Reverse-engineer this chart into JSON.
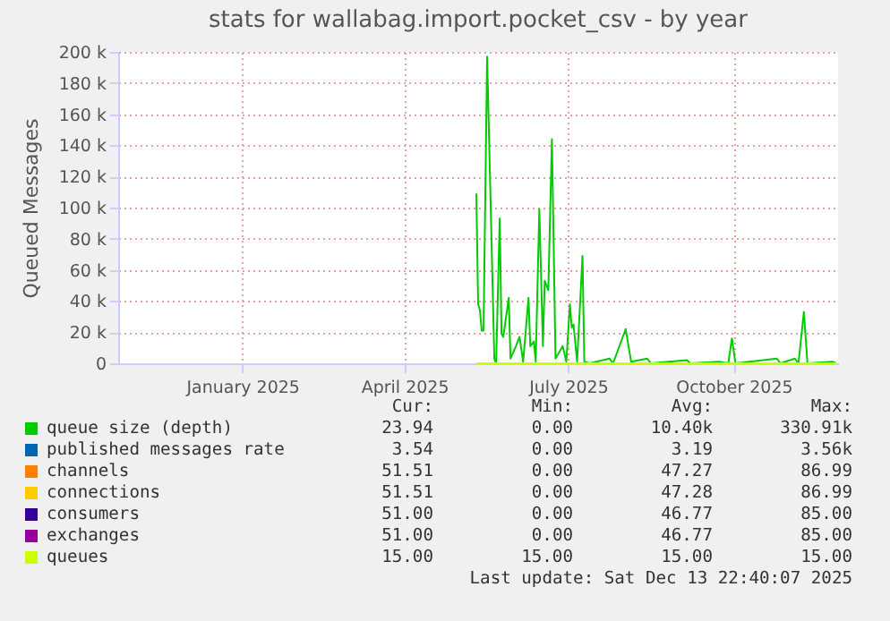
{
  "chart_data": {
    "type": "line",
    "title": "stats for wallabag.import.pocket_csv - by year",
    "ylabel": "Queued Messages",
    "xlim": [
      "2024-11-08",
      "2025-12-13"
    ],
    "xticks": [
      {
        "value": "2025-01-16",
        "label": "January 2025"
      },
      {
        "value": "2025-04-16",
        "label": "April 2025"
      },
      {
        "value": "2025-07-16",
        "label": "July 2025"
      },
      {
        "value": "2025-10-16",
        "label": "October 2025"
      }
    ],
    "ylim": [
      0,
      200000
    ],
    "yticks": [
      {
        "value": 0,
        "label": "0"
      },
      {
        "value": 20000,
        "label": "20 k"
      },
      {
        "value": 40000,
        "label": "40 k"
      },
      {
        "value": 60000,
        "label": "60 k"
      },
      {
        "value": 80000,
        "label": "80 k"
      },
      {
        "value": 100000,
        "label": "100 k"
      },
      {
        "value": 120000,
        "label": "120 k"
      },
      {
        "value": 140000,
        "label": "140 k"
      },
      {
        "value": 160000,
        "label": "160 k"
      },
      {
        "value": 180000,
        "label": "180 k"
      },
      {
        "value": 200000,
        "label": "200 k"
      }
    ],
    "grid": true,
    "legend": "bottom",
    "series": [
      {
        "name": "queue size (depth)",
        "color": "#00cc00",
        "x": [
          "2025-05-26",
          "2025-05-27",
          "2025-05-28",
          "2025-05-29",
          "2025-05-30",
          "2025-06-01",
          "2025-06-05",
          "2025-06-06",
          "2025-06-08",
          "2025-06-09",
          "2025-06-10",
          "2025-06-13",
          "2025-06-14",
          "2025-06-17",
          "2025-06-19",
          "2025-06-21",
          "2025-06-24",
          "2025-06-25",
          "2025-06-27",
          "2025-06-28",
          "2025-06-30",
          "2025-07-02",
          "2025-07-03",
          "2025-07-05",
          "2025-07-07",
          "2025-07-09",
          "2025-07-13",
          "2025-07-15",
          "2025-07-17",
          "2025-07-18",
          "2025-07-19",
          "2025-07-21",
          "2025-07-24",
          "2025-07-25",
          "2025-07-28",
          "2025-08-08",
          "2025-08-10",
          "2025-08-17",
          "2025-08-18",
          "2025-08-20",
          "2025-08-29",
          "2025-08-31",
          "2025-09-20",
          "2025-09-22",
          "2025-10-08",
          "2025-10-13",
          "2025-10-15",
          "2025-10-17",
          "2025-11-09",
          "2025-11-11",
          "2025-11-19",
          "2025-11-21",
          "2025-11-24",
          "2025-11-26",
          "2025-12-10",
          "2025-12-12"
        ],
        "values": [
          109000,
          38000,
          34000,
          21000,
          21000,
          197000,
          3000,
          0,
          93000,
          19000,
          17000,
          42000,
          3000,
          11000,
          17000,
          1000,
          42000,
          11000,
          14000,
          1000,
          99000,
          11000,
          53000,
          47000,
          144000,
          3000,
          11000,
          1000,
          38000,
          23000,
          25000,
          1000,
          69000,
          1000,
          0,
          3000,
          0,
          22000,
          15000,
          1000,
          3000,
          0,
          2000,
          0,
          1000,
          0,
          16000,
          0,
          3000,
          0,
          3000,
          0,
          33000,
          0,
          1000,
          0
        ]
      },
      {
        "name": "published messages rate",
        "color": "#0066b3"
      },
      {
        "name": "channels",
        "color": "#ff8000"
      },
      {
        "name": "connections",
        "color": "#ffcc00"
      },
      {
        "name": "consumers",
        "color": "#330099"
      },
      {
        "name": "exchanges",
        "color": "#990099"
      },
      {
        "name": "queues",
        "color": "#ccff00",
        "x": [
          "2025-05-26",
          "2025-12-12"
        ],
        "values": [
          0,
          0
        ]
      }
    ],
    "annotations": [
      "Cur:",
      "Min:",
      "Avg:",
      "Max:",
      "23.94",
      "0.00",
      "10.40k",
      "330.91k",
      "3.54",
      "0.00",
      "3.19",
      "3.56k",
      "51.51",
      "0.00",
      "47.27",
      "86.99",
      "51.51",
      "0.00",
      "47.28",
      "86.99",
      "51.00",
      "0.00",
      "46.77",
      "85.00",
      "51.00",
      "0.00",
      "46.77",
      "85.00",
      "15.00",
      "15.00",
      "15.00",
      "15.00",
      "Last update: Sat Dec 13 22:40:07 2025"
    ]
  }
}
